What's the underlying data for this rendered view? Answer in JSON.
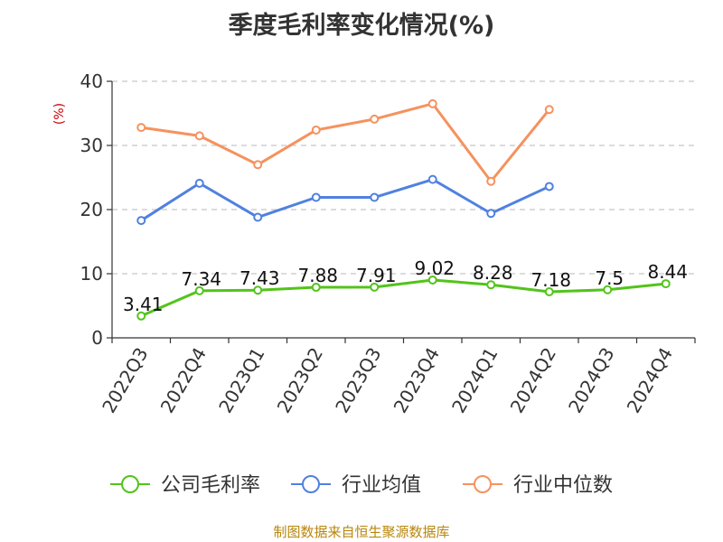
{
  "chart_data": {
    "type": "line",
    "title": "季度毛利率变化情况(%)",
    "ylabel": "(%)",
    "xlabel": "",
    "ylim": [
      0,
      40
    ],
    "yticks": [
      0,
      10,
      20,
      30,
      40
    ],
    "grid": true,
    "legend_position": "bottom",
    "categories": [
      "2022Q3",
      "2022Q4",
      "2023Q1",
      "2023Q2",
      "2023Q3",
      "2023Q4",
      "2024Q1",
      "2024Q2",
      "2024Q3",
      "2024Q4"
    ],
    "series": [
      {
        "name": "公司毛利率",
        "color": "#52c41a",
        "values": [
          3.41,
          7.34,
          7.43,
          7.88,
          7.91,
          9.02,
          8.28,
          7.18,
          7.5,
          8.44
        ],
        "labels": [
          "3.41",
          "7.34",
          "7.43",
          "7.88",
          "7.91",
          "9.02",
          "8.28",
          "7.18",
          "7.5",
          "8.44"
        ]
      },
      {
        "name": "行业均值",
        "color": "#5081e0",
        "values": [
          18.3,
          24.1,
          18.8,
          21.9,
          21.9,
          24.7,
          19.4,
          23.6,
          null,
          null
        ]
      },
      {
        "name": "行业中位数",
        "color": "#f5925e",
        "values": [
          32.8,
          31.5,
          27.0,
          32.4,
          34.1,
          36.5,
          24.4,
          35.6,
          null,
          null
        ]
      }
    ]
  },
  "source": "制图数据来自恒生聚源数据库"
}
